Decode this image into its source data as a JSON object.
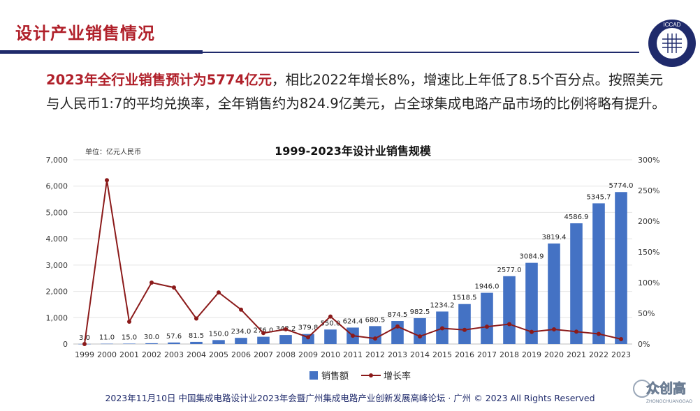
{
  "page": {
    "title": "设计产业销售情况",
    "intro_highlight": "2023年全行业销售预计为5774亿元",
    "intro_rest": "，相比2022年增长8%，增速比上年低了8.5个百分点。按照美元与人民币1:7的平均兑换率，全年销售约为824.9亿美元，占全球集成电路产品市场的比例将略有提升。",
    "footer": "2023年11月10日 中国集成电路设计业2023年会暨广州集成电路产业创新发展高峰论坛 · 广州 © 2023 All Rights Reserved",
    "logo_text": "ICCAD",
    "watermark_text": "众创高",
    "watermark_sub": "ZHONGCHUANGGAO"
  },
  "colors": {
    "bar": "#4472c4",
    "line": "#8b1a1a",
    "title_red": "#b0202a",
    "navy": "#1f2a6b"
  },
  "chart_data": {
    "type": "bar",
    "title": "1999-2023年设计业销售规模",
    "unit_label": "单位：亿元人民币",
    "categories": [
      "1999",
      "2000",
      "2001",
      "2002",
      "2003",
      "2004",
      "2005",
      "2006",
      "2007",
      "2008",
      "2009",
      "2010",
      "2011",
      "2012",
      "2013",
      "2014",
      "2015",
      "2016",
      "2017",
      "2018",
      "2019",
      "2020",
      "2021",
      "2022",
      "2023"
    ],
    "series": [
      {
        "name": "销售额",
        "axis": "left",
        "type": "bar",
        "values": [
          3.0,
          11.0,
          15.0,
          30.0,
          57.6,
          81.5,
          150.0,
          234.0,
          276.0,
          342.2,
          379.8,
          550.0,
          624.4,
          680.5,
          874.5,
          982.5,
          1234.2,
          1518.5,
          1946.0,
          2577.0,
          3084.9,
          3819.4,
          4586.9,
          5345.7,
          5774.0
        ],
        "labels": [
          "3.0",
          "11.0",
          "15.0",
          "30.0",
          "57.6",
          "81.5",
          "150.0",
          "234.0",
          "276.0",
          "342.2",
          "379.8",
          "550.0",
          "624.4",
          "680.5",
          "874.5",
          "982.5",
          "1234.2",
          "1518.5",
          "1946.0",
          "2577.0",
          "3084.9",
          "3819.4",
          "4586.9",
          "5345.7",
          "5774.0"
        ]
      },
      {
        "name": "增长率",
        "axis": "right",
        "type": "line",
        "values": [
          0,
          266.7,
          36.4,
          100.0,
          92.0,
          41.5,
          84.0,
          56.0,
          17.9,
          24.0,
          11.0,
          44.8,
          13.5,
          9.0,
          28.5,
          12.4,
          25.6,
          23.0,
          28.2,
          32.4,
          19.7,
          23.8,
          20.1,
          16.5,
          8.0
        ]
      }
    ],
    "y_left": {
      "min": 0,
      "max": 7000,
      "ticks": [
        "0",
        "1,000",
        "2,000",
        "3,000",
        "4,000",
        "5,000",
        "6,000",
        "7,000"
      ]
    },
    "y_right": {
      "min": 0,
      "max": 300,
      "ticks": [
        "0%",
        "50%",
        "100%",
        "150%",
        "200%",
        "250%",
        "300%"
      ]
    },
    "grid": true,
    "legend_position": "bottom"
  }
}
